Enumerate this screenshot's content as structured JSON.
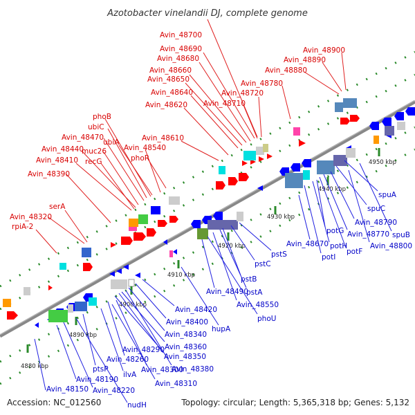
{
  "title": "Azotobacter vinelandii DJ, complete genome",
  "footer": {
    "accession": "Accession: NC_012560",
    "summary": "Topology: circular; Length: 5,365,318 bp; Genes: 5,132"
  },
  "ticks": [
    "4880 kbp",
    "4890 kbp",
    "4900 kbp",
    "4910 kbp",
    "4920 kbp",
    "4930 kbp",
    "4940 kbp",
    "4950 kbp"
  ],
  "top_labels": [
    "Avin_48700",
    "Avin_48690",
    "Avin_48680",
    "Avin_48660",
    "Avin_48650",
    "Avin_48640",
    "Avin_48620",
    "Avin_48720",
    "Avin_48710",
    "Avin_48780",
    "Avin_48900",
    "Avin_48890",
    "Avin_48880",
    "phoB",
    "ubiC",
    "Avin_48470",
    "ubiA",
    "muc26",
    "Avin_48440",
    "Avin_48410",
    "recG",
    "Avin_48540",
    "phoR",
    "Avin_48610",
    "Avin_48390",
    "serA",
    "Avin_48320",
    "rpiA-2"
  ],
  "bottom_labels": [
    "spuA",
    "spuC",
    "Avin_48790",
    "spuB",
    "Avin_48800",
    "Avin_48770",
    "potG",
    "potH",
    "potF",
    "potI",
    "Avin_48670",
    "pstS",
    "pstC",
    "pstB",
    "pstA",
    "Avin_48550",
    "phoU",
    "Avin_48490",
    "hupA",
    "Avin_48420",
    "Avin_48400",
    "Avin_48340",
    "Avin_48360",
    "Avin_48350",
    "Avin_48290",
    "Avin_48380",
    "Avin_48260",
    "Avin_48300",
    "ptsP",
    "ilvA",
    "Avin_48310",
    "Avin_48190",
    "Avin_48150",
    "Avin_48220",
    "nudH"
  ],
  "colors": {
    "forward": "#ff0000",
    "reverse": "#0000ff",
    "label_top": "#d80000",
    "label_bottom": "#0000c8",
    "backbone": "#888888"
  }
}
